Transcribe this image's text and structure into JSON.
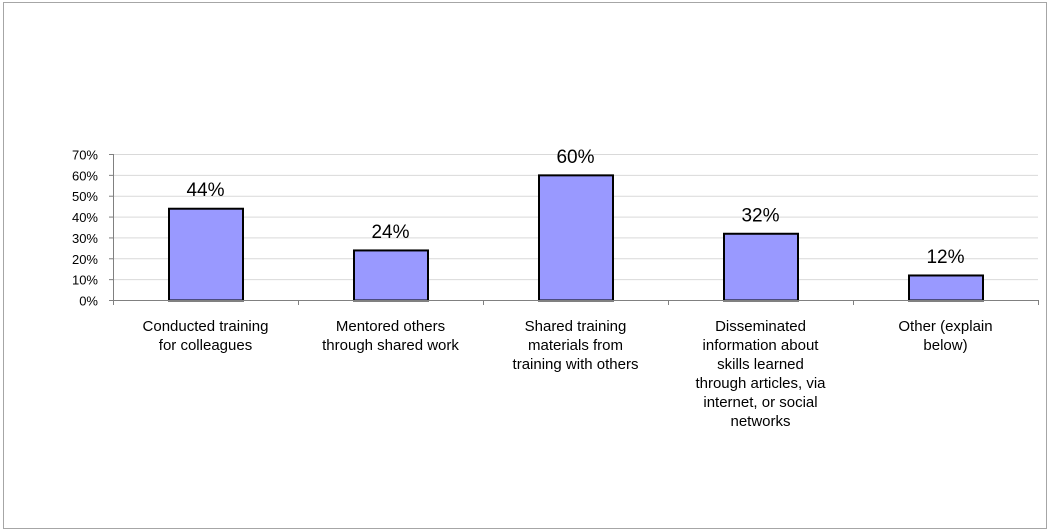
{
  "chart_data": {
    "type": "bar",
    "title": "",
    "xlabel": "",
    "ylabel": "",
    "categories": [
      "Conducted training for colleagues",
      "Mentored others through shared work",
      "Shared training materials from training with others",
      "Disseminated information about skills learned through articles, via internet, or social networks",
      "Other (explain below)"
    ],
    "category_lines": [
      [
        "Conducted training",
        "for colleagues"
      ],
      [
        "Mentored others",
        "through shared work"
      ],
      [
        "Shared training",
        "materials from",
        "training with others"
      ],
      [
        "Disseminated",
        "information about",
        "skills learned",
        "through articles, via",
        "internet, or social",
        "networks"
      ],
      [
        "Other (explain",
        "below)"
      ]
    ],
    "values": [
      44,
      24,
      60,
      32,
      12
    ],
    "data_labels": [
      "44%",
      "24%",
      "60%",
      "32%",
      "12%"
    ],
    "ylim": [
      0,
      70
    ],
    "y_ticks": [
      0,
      10,
      20,
      30,
      40,
      50,
      60,
      70
    ],
    "y_tick_labels": [
      "0%",
      "10%",
      "20%",
      "30%",
      "40%",
      "50%",
      "60%",
      "70%"
    ],
    "grid": true,
    "legend": "none",
    "colors": {
      "bar_fill": "#9999ff",
      "bar_stroke": "#000000",
      "grid": "#d9d9d9",
      "axis": "#808080"
    }
  }
}
